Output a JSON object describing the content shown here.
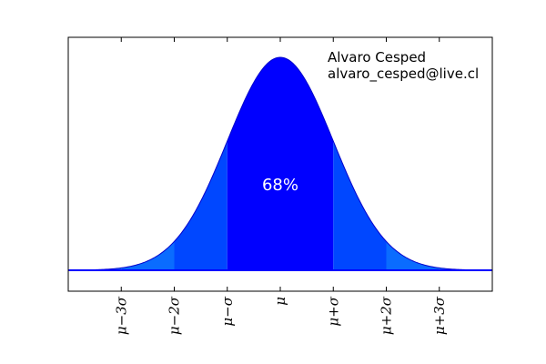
{
  "chart_data": {
    "type": "area",
    "title": "",
    "xlabel": "",
    "ylabel": "",
    "distribution": "normal",
    "mean": 0,
    "std": 1,
    "xlim": [
      -4,
      4
    ],
    "grid": false,
    "legend": "none",
    "x_ticks": [
      {
        "value": -3,
        "label": "μ−3σ"
      },
      {
        "value": -2,
        "label": "μ−2σ"
      },
      {
        "value": -1,
        "label": "μ−σ"
      },
      {
        "value": 0,
        "label": "μ"
      },
      {
        "value": 1,
        "label": "μ+σ"
      },
      {
        "value": 2,
        "label": "μ+2σ"
      },
      {
        "value": 3,
        "label": "μ+3σ"
      }
    ],
    "bands": [
      {
        "from": -4,
        "to": -3,
        "color": "#1a75ff"
      },
      {
        "from": -3,
        "to": -2,
        "color": "#0a6cff"
      },
      {
        "from": -2,
        "to": -1,
        "color": "#0047ff"
      },
      {
        "from": -1,
        "to": 1,
        "color": "#0000ff"
      },
      {
        "from": 1,
        "to": 2,
        "color": "#0047ff"
      },
      {
        "from": 2,
        "to": 3,
        "color": "#0a6cff"
      },
      {
        "from": 3,
        "to": 4,
        "color": "#1a75ff"
      }
    ],
    "annotation": {
      "text": "68%",
      "x": 0
    },
    "author": {
      "name": "Alvaro Cesped",
      "email": "alvaro_cesped@live.cl"
    },
    "colors": {
      "curve": "#0000cc",
      "baseline": "#0000ff",
      "frame": "#000000"
    }
  }
}
